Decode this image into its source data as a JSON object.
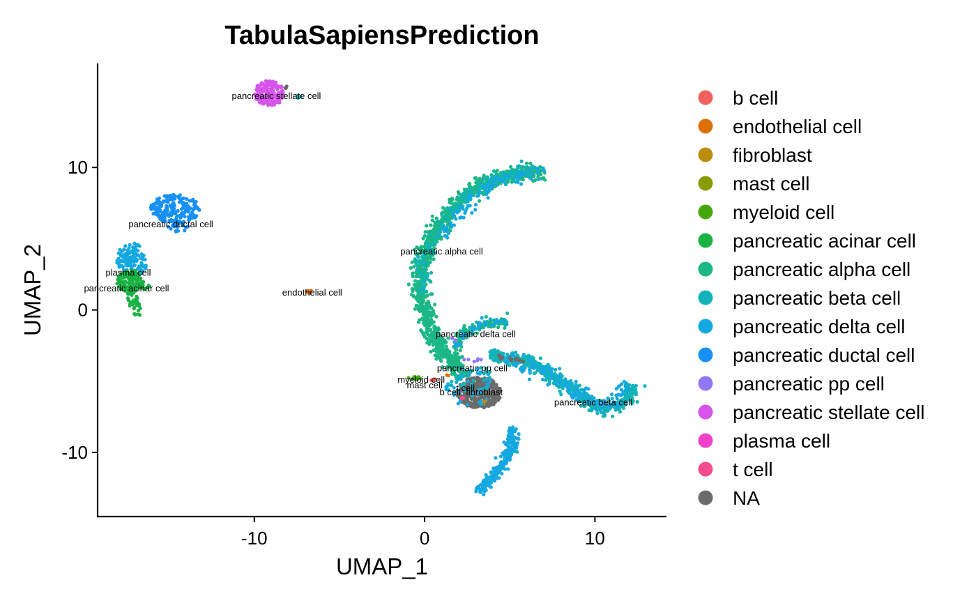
{
  "chart_data": {
    "type": "scatter",
    "title": "TabulaSapiensPrediction",
    "xlabel": "UMAP_1",
    "ylabel": "UMAP_2",
    "xlim": [
      -19.2,
      14.2
    ],
    "ylim": [
      -14.5,
      17.3
    ],
    "x_ticks": [
      -10,
      0,
      10
    ],
    "y_ticks": [
      -10,
      0,
      10
    ],
    "grid": false,
    "legend_position": "right",
    "legend": [
      {
        "name": "b cell",
        "color": "#F8766D"
      },
      {
        "name": "endothelial cell",
        "color": "#DE8C00"
      },
      {
        "name": "fibroblast",
        "color": "#B79F00"
      },
      {
        "name": "mast cell",
        "color": "#7CAE00"
      },
      {
        "name": "myeloid cell",
        "color": "#00BA38"
      },
      {
        "name": "pancreatic acinar cell",
        "color": "#00C08B"
      },
      {
        "name": "pancreatic alpha cell",
        "color": "#00BFC4"
      },
      {
        "name": "pancreatic beta cell",
        "color": "#00B4F0"
      },
      {
        "name": "pancreatic delta cell",
        "color": "#619CFF"
      },
      {
        "name": "pancreatic ductal cell",
        "color": "#C77CFF"
      },
      {
        "name": "pancreatic pp cell",
        "color": "#F564E3"
      },
      {
        "name": "pancreatic stellate cell",
        "color": "#FF64B0"
      },
      {
        "name": "plasma cell",
        "color": "#F8766D"
      },
      {
        "name": "t cell",
        "color": "#FF4F9A"
      },
      {
        "name": "NA",
        "color": "#6B6B6B"
      }
    ],
    "point_colors": {
      "b cell": "#F0605D",
      "endothelial cell": "#DB7008",
      "fibroblast": "#BC8D0E",
      "mast cell": "#8A9B06",
      "myeloid cell": "#46A70A",
      "pancreatic acinar cell": "#1AB243",
      "pancreatic alpha cell": "#1BB785",
      "pancreatic beta cell": "#12B3B8",
      "pancreatic delta cell": "#14A8E0",
      "pancreatic ductal cell": "#1791F5",
      "pancreatic pp cell": "#9078F5",
      "pancreatic stellate cell": "#D754EB",
      "plasma cell": "#F040C8",
      "t cell": "#F64C8E",
      "NA": "#6B6B6B"
    },
    "cluster_labels": [
      {
        "text": "pancreatic stellate cell",
        "x": -8.7,
        "y": 15.0
      },
      {
        "text": "pancreatic ductal cell",
        "x": -14.9,
        "y": 6.0
      },
      {
        "text": "plasma cell",
        "x": -17.4,
        "y": 2.6
      },
      {
        "text": "pancreatic acinar cell",
        "x": -17.5,
        "y": 1.5
      },
      {
        "text": "endothelial cell",
        "x": -6.6,
        "y": 1.2
      },
      {
        "text": "pancreatic alpha cell",
        "x": 1.0,
        "y": 4.1
      },
      {
        "text": "pancreatic delta cell",
        "x": 3.0,
        "y": -1.7
      },
      {
        "text": "pancreatic pp cell",
        "x": 2.8,
        "y": -4.1
      },
      {
        "text": "myeloid cell",
        "x": -0.2,
        "y": -4.9
      },
      {
        "text": "mast cell",
        "x": 0.0,
        "y": -5.3
      },
      {
        "text": "t cell",
        "x": 2.4,
        "y": -5.5
      },
      {
        "text": "b cell",
        "x": 1.5,
        "y": -5.8
      },
      {
        "text": "fibroblast",
        "x": 3.5,
        "y": -5.8
      },
      {
        "text": "pancreatic beta cell",
        "x": 9.9,
        "y": -6.5
      }
    ],
    "clusters": [
      {
        "name": "pancreatic stellate cell",
        "shape": "blob",
        "cx": -9.1,
        "cy": 15.2,
        "rx": 0.9,
        "ry": 0.9,
        "n": 200
      },
      {
        "name": "NA",
        "shape": "blob",
        "cx": -8.1,
        "cy": 15.6,
        "rx": 0.15,
        "ry": 0.15,
        "n": 3
      },
      {
        "name": "pancreatic beta cell",
        "shape": "blob",
        "cx": -7.4,
        "cy": 15.0,
        "rx": 0.25,
        "ry": 0.12,
        "n": 4
      },
      {
        "name": "pancreatic ductal cell",
        "shape": "blob",
        "cx": -14.6,
        "cy": 7.1,
        "rx": 1.5,
        "ry": 1.0,
        "n": 190
      },
      {
        "name": "pancreatic ductal cell",
        "shape": "blob",
        "cx": -14.5,
        "cy": 5.9,
        "rx": 0.6,
        "ry": 0.5,
        "n": 25
      },
      {
        "name": "pancreatic delta cell",
        "shape": "blob",
        "cx": -17.2,
        "cy": 3.4,
        "rx": 0.9,
        "ry": 1.3,
        "n": 120
      },
      {
        "name": "pancreatic acinar cell",
        "shape": "blob",
        "cx": -17.3,
        "cy": 2.0,
        "rx": 0.8,
        "ry": 0.8,
        "n": 130
      },
      {
        "name": "pancreatic acinar cell",
        "shape": "curve",
        "pts": [
          [
            -17.4,
            1.6
          ],
          [
            -17.1,
            0.6
          ],
          [
            -16.8,
            -0.3
          ]
        ],
        "width": 0.35,
        "n": 40
      },
      {
        "name": "pancreatic acinar cell",
        "shape": "curve",
        "pts": [
          [
            -17.0,
            1.5
          ],
          [
            -16.0,
            1.6
          ]
        ],
        "width": 0.2,
        "n": 10
      },
      {
        "name": "endothelial cell",
        "shape": "blob",
        "cx": -6.8,
        "cy": 1.3,
        "rx": 0.2,
        "ry": 0.18,
        "n": 8
      },
      {
        "name": "pancreatic alpha cell",
        "shape": "curve",
        "pts": [
          [
            7.0,
            9.8
          ],
          [
            5.0,
            9.5
          ],
          [
            3.0,
            8.6
          ],
          [
            1.5,
            7.0
          ],
          [
            0.2,
            4.6
          ],
          [
            -0.4,
            2.0
          ],
          [
            0.2,
            -1.0
          ],
          [
            1.2,
            -3.2
          ],
          [
            2.4,
            -4.6
          ]
        ],
        "width": 0.5,
        "n": 1100
      },
      {
        "name": "pancreatic beta cell",
        "shape": "curve",
        "pts": [
          [
            6.5,
            10.0
          ],
          [
            4.5,
            9.4
          ],
          [
            2.6,
            8.2
          ],
          [
            1.2,
            6.3
          ],
          [
            0.0,
            3.5
          ],
          [
            -0.2,
            1.2
          ]
        ],
        "width": 0.45,
        "n": 140
      },
      {
        "name": "pancreatic delta cell",
        "shape": "curve",
        "pts": [
          [
            7.1,
            9.9
          ],
          [
            4.8,
            9.3
          ],
          [
            2.9,
            8.0
          ],
          [
            1.0,
            5.0
          ]
        ],
        "width": 0.5,
        "n": 90
      },
      {
        "name": "pancreatic alpha cell",
        "shape": "curve",
        "pts": [
          [
            5.0,
            -0.8
          ],
          [
            3.6,
            -0.9
          ],
          [
            2.4,
            -1.6
          ],
          [
            1.8,
            -2.8
          ],
          [
            1.8,
            -3.8
          ]
        ],
        "width": 0.3,
        "n": 130
      },
      {
        "name": "pancreatic delta cell",
        "shape": "curve",
        "pts": [
          [
            5.0,
            -0.8
          ],
          [
            3.6,
            -0.9
          ],
          [
            2.4,
            -1.6
          ],
          [
            1.9,
            -2.6
          ]
        ],
        "width": 0.28,
        "n": 40
      },
      {
        "name": "pancreatic beta cell",
        "shape": "curve",
        "pts": [
          [
            3.8,
            -3.2
          ],
          [
            6.2,
            -3.6
          ],
          [
            8.2,
            -5.2
          ],
          [
            10.3,
            -7.0
          ],
          [
            11.8,
            -6.6
          ],
          [
            12.2,
            -5.2
          ]
        ],
        "width": 0.45,
        "n": 500
      },
      {
        "name": "pancreatic delta cell",
        "shape": "curve",
        "pts": [
          [
            4.6,
            -3.4
          ],
          [
            7.5,
            -4.6
          ],
          [
            10.5,
            -6.9
          ],
          [
            12.0,
            -5.2
          ]
        ],
        "width": 0.5,
        "n": 140
      },
      {
        "name": "NA",
        "shape": "curve",
        "pts": [
          [
            4.2,
            -3.3
          ],
          [
            6.0,
            -3.6
          ]
        ],
        "width": 0.12,
        "n": 15
      },
      {
        "name": "NA",
        "shape": "blob",
        "cx": 3.2,
        "cy": -5.8,
        "rx": 1.3,
        "ry": 1.1,
        "n": 380
      },
      {
        "name": "pancreatic delta cell",
        "shape": "blob",
        "cx": 2.6,
        "cy": -5.4,
        "rx": 1.5,
        "ry": 1.4,
        "n": 45
      },
      {
        "name": "pancreatic beta cell",
        "shape": "blob",
        "cx": 2.7,
        "cy": -5.0,
        "rx": 1.4,
        "ry": 1.2,
        "n": 25
      },
      {
        "name": "pancreatic pp cell",
        "shape": "blob",
        "cx": 2.6,
        "cy": -3.6,
        "rx": 0.8,
        "ry": 0.3,
        "n": 6
      },
      {
        "name": "pancreatic pp cell",
        "shape": "blob",
        "cx": 1.7,
        "cy": -2.1,
        "rx": 0.2,
        "ry": 0.15,
        "n": 3
      },
      {
        "name": "myeloid cell",
        "shape": "blob",
        "cx": -0.5,
        "cy": -4.8,
        "rx": 0.6,
        "ry": 0.12,
        "n": 14
      },
      {
        "name": "b cell",
        "shape": "blob",
        "cx": 0.5,
        "cy": -4.9,
        "rx": 0.12,
        "ry": 0.1,
        "n": 3
      },
      {
        "name": "endothelial cell",
        "shape": "blob",
        "cx": 1.3,
        "cy": -4.6,
        "rx": 0.1,
        "ry": 0.1,
        "n": 2
      },
      {
        "name": "t cell",
        "shape": "blob",
        "cx": 2.3,
        "cy": -6.2,
        "rx": 0.15,
        "ry": 0.12,
        "n": 3
      },
      {
        "name": "fibroblast",
        "shape": "blob",
        "cx": 3.5,
        "cy": -6.4,
        "rx": 0.12,
        "ry": 0.1,
        "n": 2
      },
      {
        "name": "pancreatic delta cell",
        "shape": "curve",
        "pts": [
          [
            5.2,
            -8.3
          ],
          [
            5.0,
            -10.2
          ],
          [
            4.0,
            -11.8
          ],
          [
            3.4,
            -12.4
          ],
          [
            3.2,
            -12.9
          ]
        ],
        "width": 0.35,
        "n": 230
      }
    ]
  }
}
